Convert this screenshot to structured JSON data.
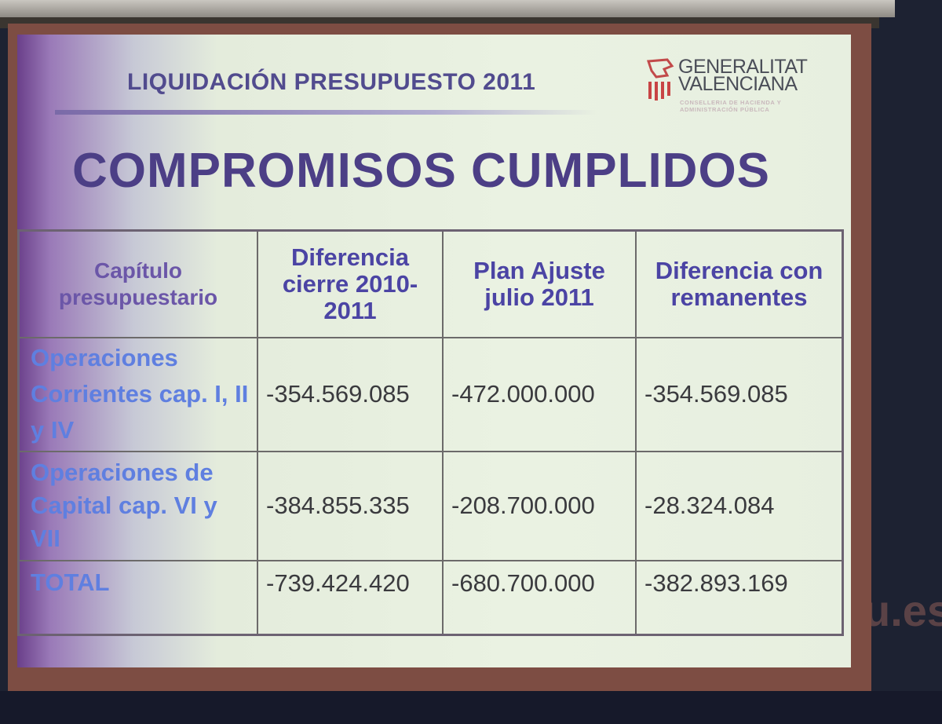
{
  "slide": {
    "subtitle": "LIQUIDACIÓN PRESUPUESTO 2011",
    "title": "COMPROMISOS CUMPLIDOS",
    "logo": {
      "name_line1": "GENERALITAT",
      "name_line2": "VALENCIANA",
      "sub_line1": "CONSELLERIA DE HACIENDA Y",
      "sub_line2": "ADMINISTRACIÓN PÚBLICA"
    },
    "table": {
      "headers": [
        "Capítulo presupuestario",
        "Diferencia cierre 2010-2011",
        "Plan Ajuste julio 2011",
        "Diferencia con remanentes"
      ],
      "rows": [
        {
          "label": "Operaciones Corrientes cap. I, II y IV",
          "values": [
            "-354.569.085",
            "-472.000.000",
            "-354.569.085"
          ]
        },
        {
          "label": "Operaciones de Capital cap. VI y VII",
          "values": [
            "-384.855.335",
            "-208.700.000",
            "-28.324.084"
          ]
        },
        {
          "label": "TOTAL",
          "values": [
            "-739.424.420",
            "-680.700.000",
            "-382.893.169"
          ]
        }
      ]
    }
  },
  "background_text": "u.es",
  "colors": {
    "header_text": "#4b44a4",
    "row_label_text": "#5f7fe0",
    "title_text": "#4c3f86"
  }
}
